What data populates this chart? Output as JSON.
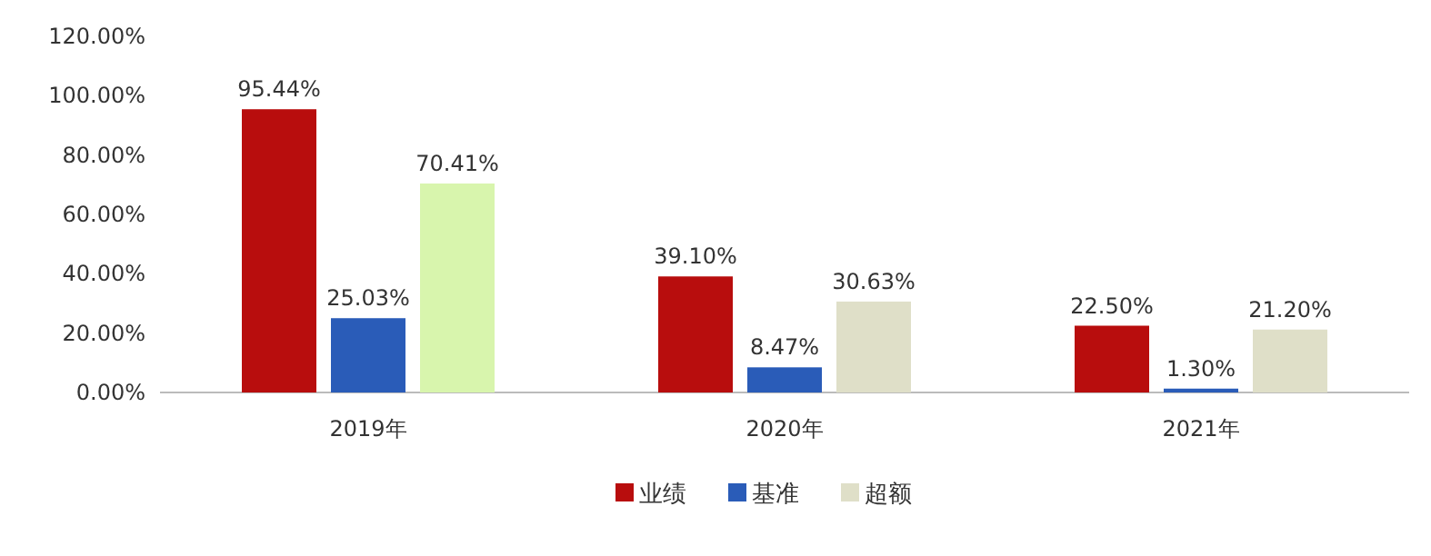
{
  "chart_data": {
    "type": "bar",
    "categories": [
      "2019年",
      "2020年",
      "2021年"
    ],
    "series": [
      {
        "name": "业绩",
        "color": "#b80d0d",
        "values": [
          95.44,
          39.1,
          22.5
        ]
      },
      {
        "name": "基准",
        "color": "#2a5cb8",
        "values": [
          25.03,
          8.47,
          1.3
        ]
      },
      {
        "name": "超额",
        "color": "#dfdfc8",
        "colors": [
          "#d8f5ad",
          "#dfdfc8",
          "#dfdfc8"
        ],
        "values": [
          70.41,
          30.63,
          21.2
        ]
      }
    ],
    "ylim": [
      0,
      120
    ],
    "yticks": [
      {
        "value": 0,
        "label": "0.00%"
      },
      {
        "value": 20,
        "label": "20.00%"
      },
      {
        "value": 40,
        "label": "40.00%"
      },
      {
        "value": 60,
        "label": "60.00%"
      },
      {
        "value": 80,
        "label": "80.00%"
      },
      {
        "value": 100,
        "label": "100.00%"
      },
      {
        "value": 120,
        "label": "120.00%"
      }
    ],
    "value_labels": [
      [
        "95.44%",
        "39.10%",
        "22.50%"
      ],
      [
        "25.03%",
        "8.47%",
        "1.30%"
      ],
      [
        "70.41%",
        "30.63%",
        "21.20%"
      ]
    ],
    "legend": "bottom"
  }
}
